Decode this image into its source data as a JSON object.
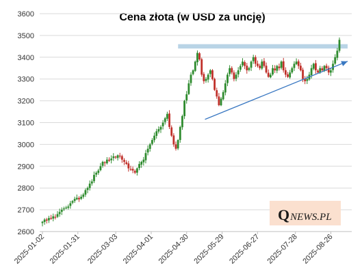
{
  "chart_data": {
    "type": "candlestick",
    "title": "Cena złota (w USD za uncję)",
    "xlabel": "",
    "ylabel": "",
    "ylim": [
      2600,
      3600
    ],
    "y_ticks": [
      "2600",
      "2700",
      "2800",
      "2900",
      "3000",
      "3100",
      "3200",
      "3300",
      "3400",
      "3500",
      "3600"
    ],
    "x_tick_labels": [
      "2025-01-02",
      "2025-01-31",
      "2025-03-03",
      "2025-04-01",
      "2025-04-30",
      "2025-05-29",
      "2025-06-27",
      "2025-07-28",
      "2025-08-26"
    ],
    "grid": true,
    "legend": "none",
    "up_color": "#2e8b2e",
    "down_color": "#c0302a",
    "series": [
      {
        "x_start": "2025-01-02",
        "x_end": "2025-09-02",
        "close": [
          2645,
          2655,
          2650,
          2662,
          2660,
          2670,
          2665,
          2680,
          2690,
          2700,
          2706,
          2710,
          2715,
          2730,
          2740,
          2750,
          2755,
          2748,
          2760,
          2770,
          2790,
          2800,
          2820,
          2830,
          2860,
          2870,
          2880,
          2900,
          2920,
          2915,
          2930,
          2925,
          2935,
          2945,
          2940,
          2950,
          2945,
          2930,
          2920,
          2910,
          2890,
          2885,
          2880,
          2870,
          2890,
          2910,
          2920,
          2930,
          2960,
          2980,
          3000,
          3020,
          3040,
          3060,
          3070,
          3080,
          3100,
          3120,
          3140,
          3080,
          3040,
          3000,
          2980,
          3020,
          3080,
          3130,
          3200,
          3230,
          3280,
          3320,
          3340,
          3380,
          3420,
          3390,
          3320,
          3290,
          3300,
          3320,
          3340,
          3300,
          3250,
          3220,
          3180,
          3210,
          3240,
          3280,
          3320,
          3350,
          3330,
          3300,
          3320,
          3340,
          3360,
          3380,
          3360,
          3340,
          3350,
          3380,
          3400,
          3370,
          3360,
          3350,
          3380,
          3360,
          3330,
          3310,
          3320,
          3350,
          3340,
          3360,
          3350,
          3380,
          3340,
          3320,
          3310,
          3330,
          3350,
          3370,
          3380,
          3360,
          3340,
          3300,
          3290,
          3300,
          3320,
          3350,
          3370,
          3340,
          3330,
          3350,
          3340,
          3360,
          3350,
          3330,
          3340,
          3370,
          3400,
          3430,
          3480
        ]
      }
    ],
    "resistance_zone": {
      "from": 3440,
      "to": 3460,
      "x_start": "2025-04-23",
      "x_end": "2025-09-02",
      "color": "#b9d4e6"
    },
    "trendline": {
      "start": {
        "x": "2025-05-15",
        "y": 3115
      },
      "end": {
        "x": "2025-09-02",
        "y": 3375
      },
      "color": "#3a78c2"
    }
  },
  "logo": {
    "q": "Q",
    "rest": "NEWS.PL"
  }
}
